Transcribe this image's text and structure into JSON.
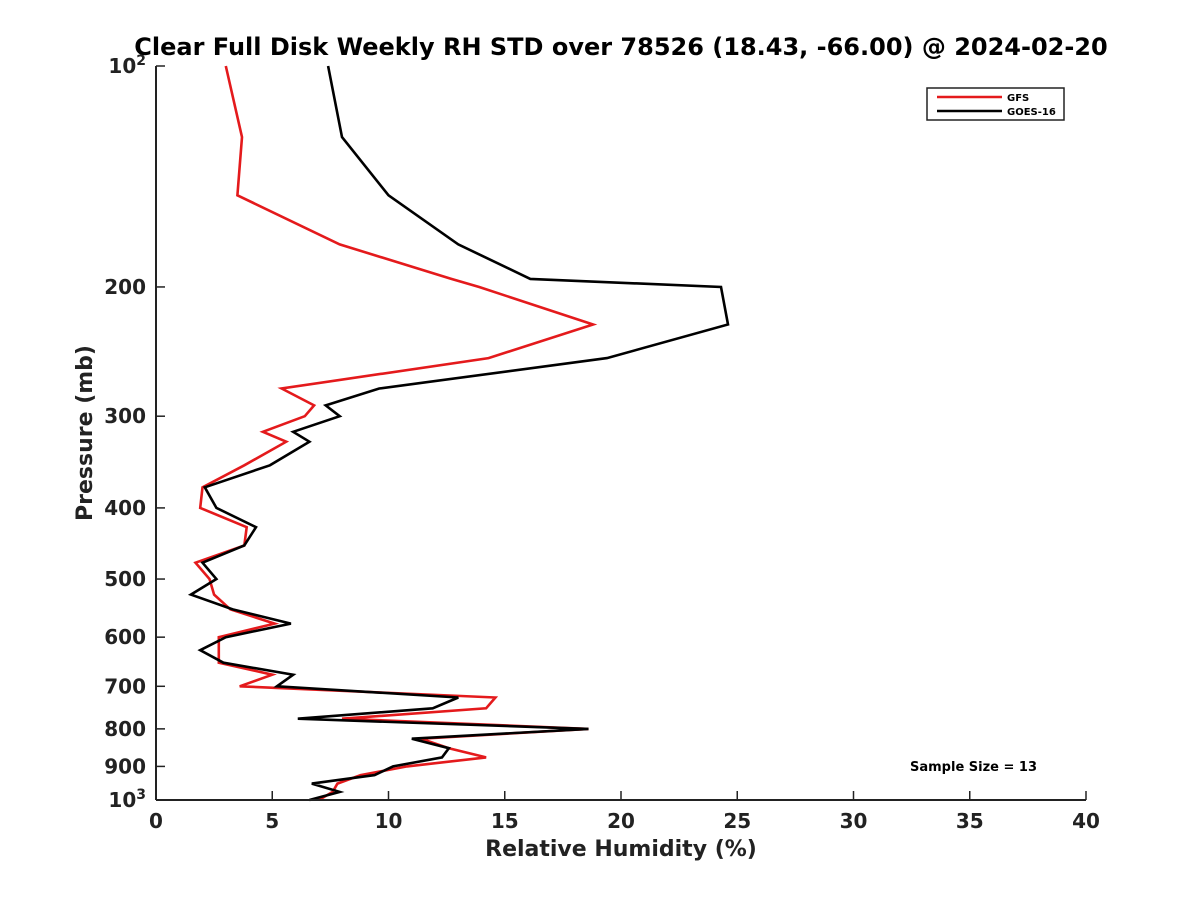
{
  "chart_data": {
    "type": "line",
    "title": "Clear Full Disk Weekly RH STD over 78526 (18.43, -66.00) @ 2024-02-20",
    "xlabel": "Relative Humidity (%)",
    "ylabel": "Pressure (mb)",
    "xlim": [
      0,
      40
    ],
    "ylim": [
      100,
      1000
    ],
    "yscale": "log",
    "y_reversed": true,
    "grid": false,
    "legend_position": "top-right",
    "x_ticks": [
      0,
      5,
      10,
      15,
      20,
      25,
      30,
      35,
      40
    ],
    "y_ticks": [
      {
        "value": 100,
        "base": "10",
        "exp": "2"
      },
      {
        "value": 200,
        "label": "200"
      },
      {
        "value": 300,
        "label": "300"
      },
      {
        "value": 400,
        "label": "400"
      },
      {
        "value": 500,
        "label": "500"
      },
      {
        "value": 600,
        "label": "600"
      },
      {
        "value": 700,
        "label": "700"
      },
      {
        "value": 800,
        "label": "800"
      },
      {
        "value": 900,
        "label": "900"
      },
      {
        "value": 1000,
        "base": "10",
        "exp": "3"
      }
    ],
    "annotation": "Sample Size = 13",
    "series": [
      {
        "name": "GFS",
        "color": "#e41a1c",
        "points": [
          [
            3.0,
            100
          ],
          [
            3.7,
            125
          ],
          [
            3.5,
            150
          ],
          [
            7.9,
            175
          ],
          [
            12.7,
            195
          ],
          [
            13.9,
            200
          ],
          [
            18.8,
            225
          ],
          [
            14.3,
            250
          ],
          [
            5.4,
            275
          ],
          [
            6.8,
            290
          ],
          [
            6.4,
            300
          ],
          [
            4.6,
            315
          ],
          [
            5.6,
            325
          ],
          [
            3.8,
            350
          ],
          [
            2.0,
            375
          ],
          [
            1.9,
            400
          ],
          [
            3.9,
            425
          ],
          [
            3.8,
            450
          ],
          [
            1.7,
            475
          ],
          [
            2.3,
            500
          ],
          [
            2.5,
            525
          ],
          [
            3.2,
            550
          ],
          [
            5.1,
            575
          ],
          [
            2.7,
            600
          ],
          [
            2.7,
            625
          ],
          [
            2.7,
            650
          ],
          [
            5.0,
            675
          ],
          [
            3.6,
            700
          ],
          [
            14.6,
            725
          ],
          [
            14.2,
            750
          ],
          [
            8.0,
            775
          ],
          [
            18.6,
            800
          ],
          [
            11.4,
            825
          ],
          [
            12.6,
            850
          ],
          [
            14.2,
            875
          ],
          [
            10.8,
            900
          ],
          [
            8.8,
            925
          ],
          [
            7.8,
            950
          ],
          [
            7.6,
            975
          ],
          [
            7.0,
            1000
          ]
        ]
      },
      {
        "name": "GOES-16",
        "color": "#000000",
        "points": [
          [
            7.4,
            100
          ],
          [
            8.0,
            125
          ],
          [
            10.0,
            150
          ],
          [
            13.0,
            175
          ],
          [
            16.1,
            195
          ],
          [
            24.3,
            200
          ],
          [
            24.6,
            225
          ],
          [
            19.4,
            250
          ],
          [
            9.6,
            275
          ],
          [
            7.3,
            290
          ],
          [
            7.9,
            300
          ],
          [
            5.9,
            315
          ],
          [
            6.6,
            325
          ],
          [
            4.9,
            350
          ],
          [
            2.1,
            375
          ],
          [
            2.6,
            400
          ],
          [
            4.3,
            425
          ],
          [
            3.8,
            450
          ],
          [
            2.0,
            475
          ],
          [
            2.6,
            500
          ],
          [
            1.5,
            525
          ],
          [
            3.3,
            550
          ],
          [
            5.8,
            575
          ],
          [
            3.0,
            600
          ],
          [
            1.9,
            625
          ],
          [
            2.9,
            650
          ],
          [
            5.9,
            675
          ],
          [
            5.2,
            700
          ],
          [
            13.0,
            725
          ],
          [
            11.9,
            750
          ],
          [
            6.1,
            775
          ],
          [
            18.6,
            800
          ],
          [
            11.0,
            825
          ],
          [
            12.6,
            850
          ],
          [
            12.3,
            875
          ],
          [
            10.2,
            900
          ],
          [
            9.4,
            925
          ],
          [
            6.7,
            950
          ],
          [
            7.9,
            975
          ],
          [
            6.6,
            1000
          ]
        ]
      }
    ]
  }
}
